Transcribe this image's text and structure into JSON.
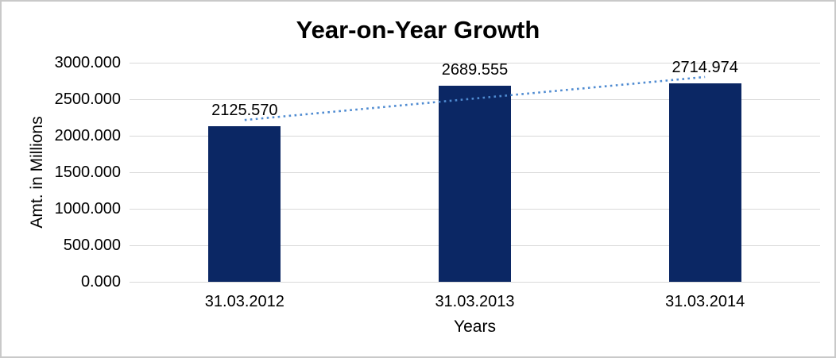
{
  "window": {
    "background": "#ffffff",
    "frame_border_color": "#c9c9c9"
  },
  "chart_data": {
    "type": "bar",
    "title": "Year-on-Year Growth",
    "categories": [
      "31.03.2012",
      "31.03.2013",
      "31.03.2014"
    ],
    "values": [
      2125.57,
      2689.555,
      2714.974
    ],
    "value_labels": [
      "2125.570",
      "2689.555",
      "2714.974"
    ],
    "xlabel": "Years",
    "ylabel": "Amt. in Millions",
    "ylim": [
      0,
      3000
    ],
    "ytick_step": 500,
    "ytick_labels": [
      "0.000",
      "500.000",
      "1000.000",
      "1500.000",
      "2000.000",
      "2500.000",
      "3000.000"
    ],
    "grid": true,
    "legend": "none",
    "colors": {
      "bar": "#0b2764",
      "trendline": "#4f8bd1",
      "gridline": "#d9d9d9",
      "text": "#000000"
    },
    "trendline": {
      "type": "linear",
      "style": "dotted"
    }
  }
}
